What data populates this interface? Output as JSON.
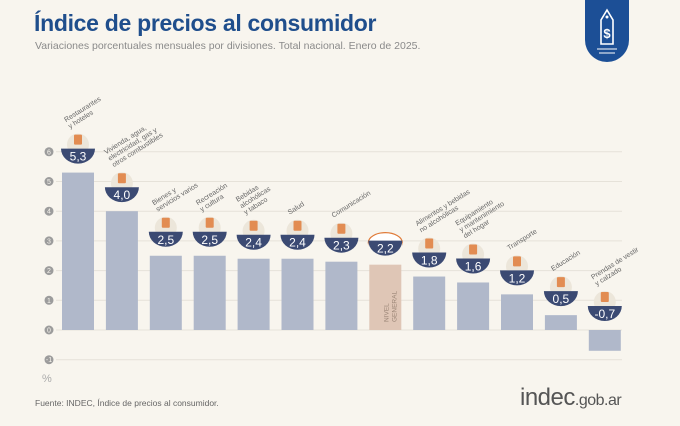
{
  "header": {
    "title": "Índice de precios al consumidor",
    "subtitle": "Variaciones porcentuales mensuales por divisiones. Total nacional. Enero de 2025."
  },
  "footer": {
    "source": "Fuente: INDEC, Índice de precios al consumidor.",
    "brand_main": "indec",
    "brand_suffix": ".gob.ar"
  },
  "colors": {
    "bar": "#b0b8ca",
    "general_bar": "#dfc6b6",
    "badge": "#3b4a73",
    "title": "#1f4e8c",
    "logo": "#1c4f96",
    "icon_accent": "#e07b39"
  },
  "chart_data": {
    "type": "bar",
    "unit_label": "%",
    "ylim": [
      -1,
      6
    ],
    "yticks": [
      -1,
      0,
      1,
      2,
      3,
      4,
      5,
      6
    ],
    "grid": true,
    "categories": [
      "Restaurantes\ny hoteles",
      "Vivienda, agua,\nelectricidad, gas y\notros combustibles",
      "Bienes y\nservicios varios",
      "Recreación\ny cultura",
      "Bebidas\nalcohólicas\ny tabaco",
      "Salud",
      "Comunicación",
      "NIVEL\nGENERAL",
      "Alimentos y bebidas\nno alcohólicas",
      "Equipamiento\ny mantenimiento\ndel hogar",
      "Transporte",
      "Educación",
      "Prendas de vestir\ny calzado"
    ],
    "values": [
      5.3,
      4.0,
      2.5,
      2.5,
      2.4,
      2.4,
      2.3,
      2.2,
      1.8,
      1.6,
      1.2,
      0.5,
      -0.7
    ],
    "value_labels": [
      "5,3",
      "4,0",
      "2,5",
      "2,5",
      "2,4",
      "2,4",
      "2,3",
      "2,2",
      "1,8",
      "1,6",
      "1,2",
      "0,5",
      "-0,7"
    ],
    "highlight_category": "NIVEL\nGENERAL",
    "icons": [
      "cutlery-icon",
      "lightbulb-icon",
      "lighter-icon",
      "umbrella-sun-icon",
      "bottles-icon",
      "first-aid-icon",
      "phone-icon",
      "shopping-basket-icon",
      "food-icon",
      "appliance-icon",
      "bus-car-icon",
      "notebook-icon",
      "clothes-icon"
    ]
  }
}
